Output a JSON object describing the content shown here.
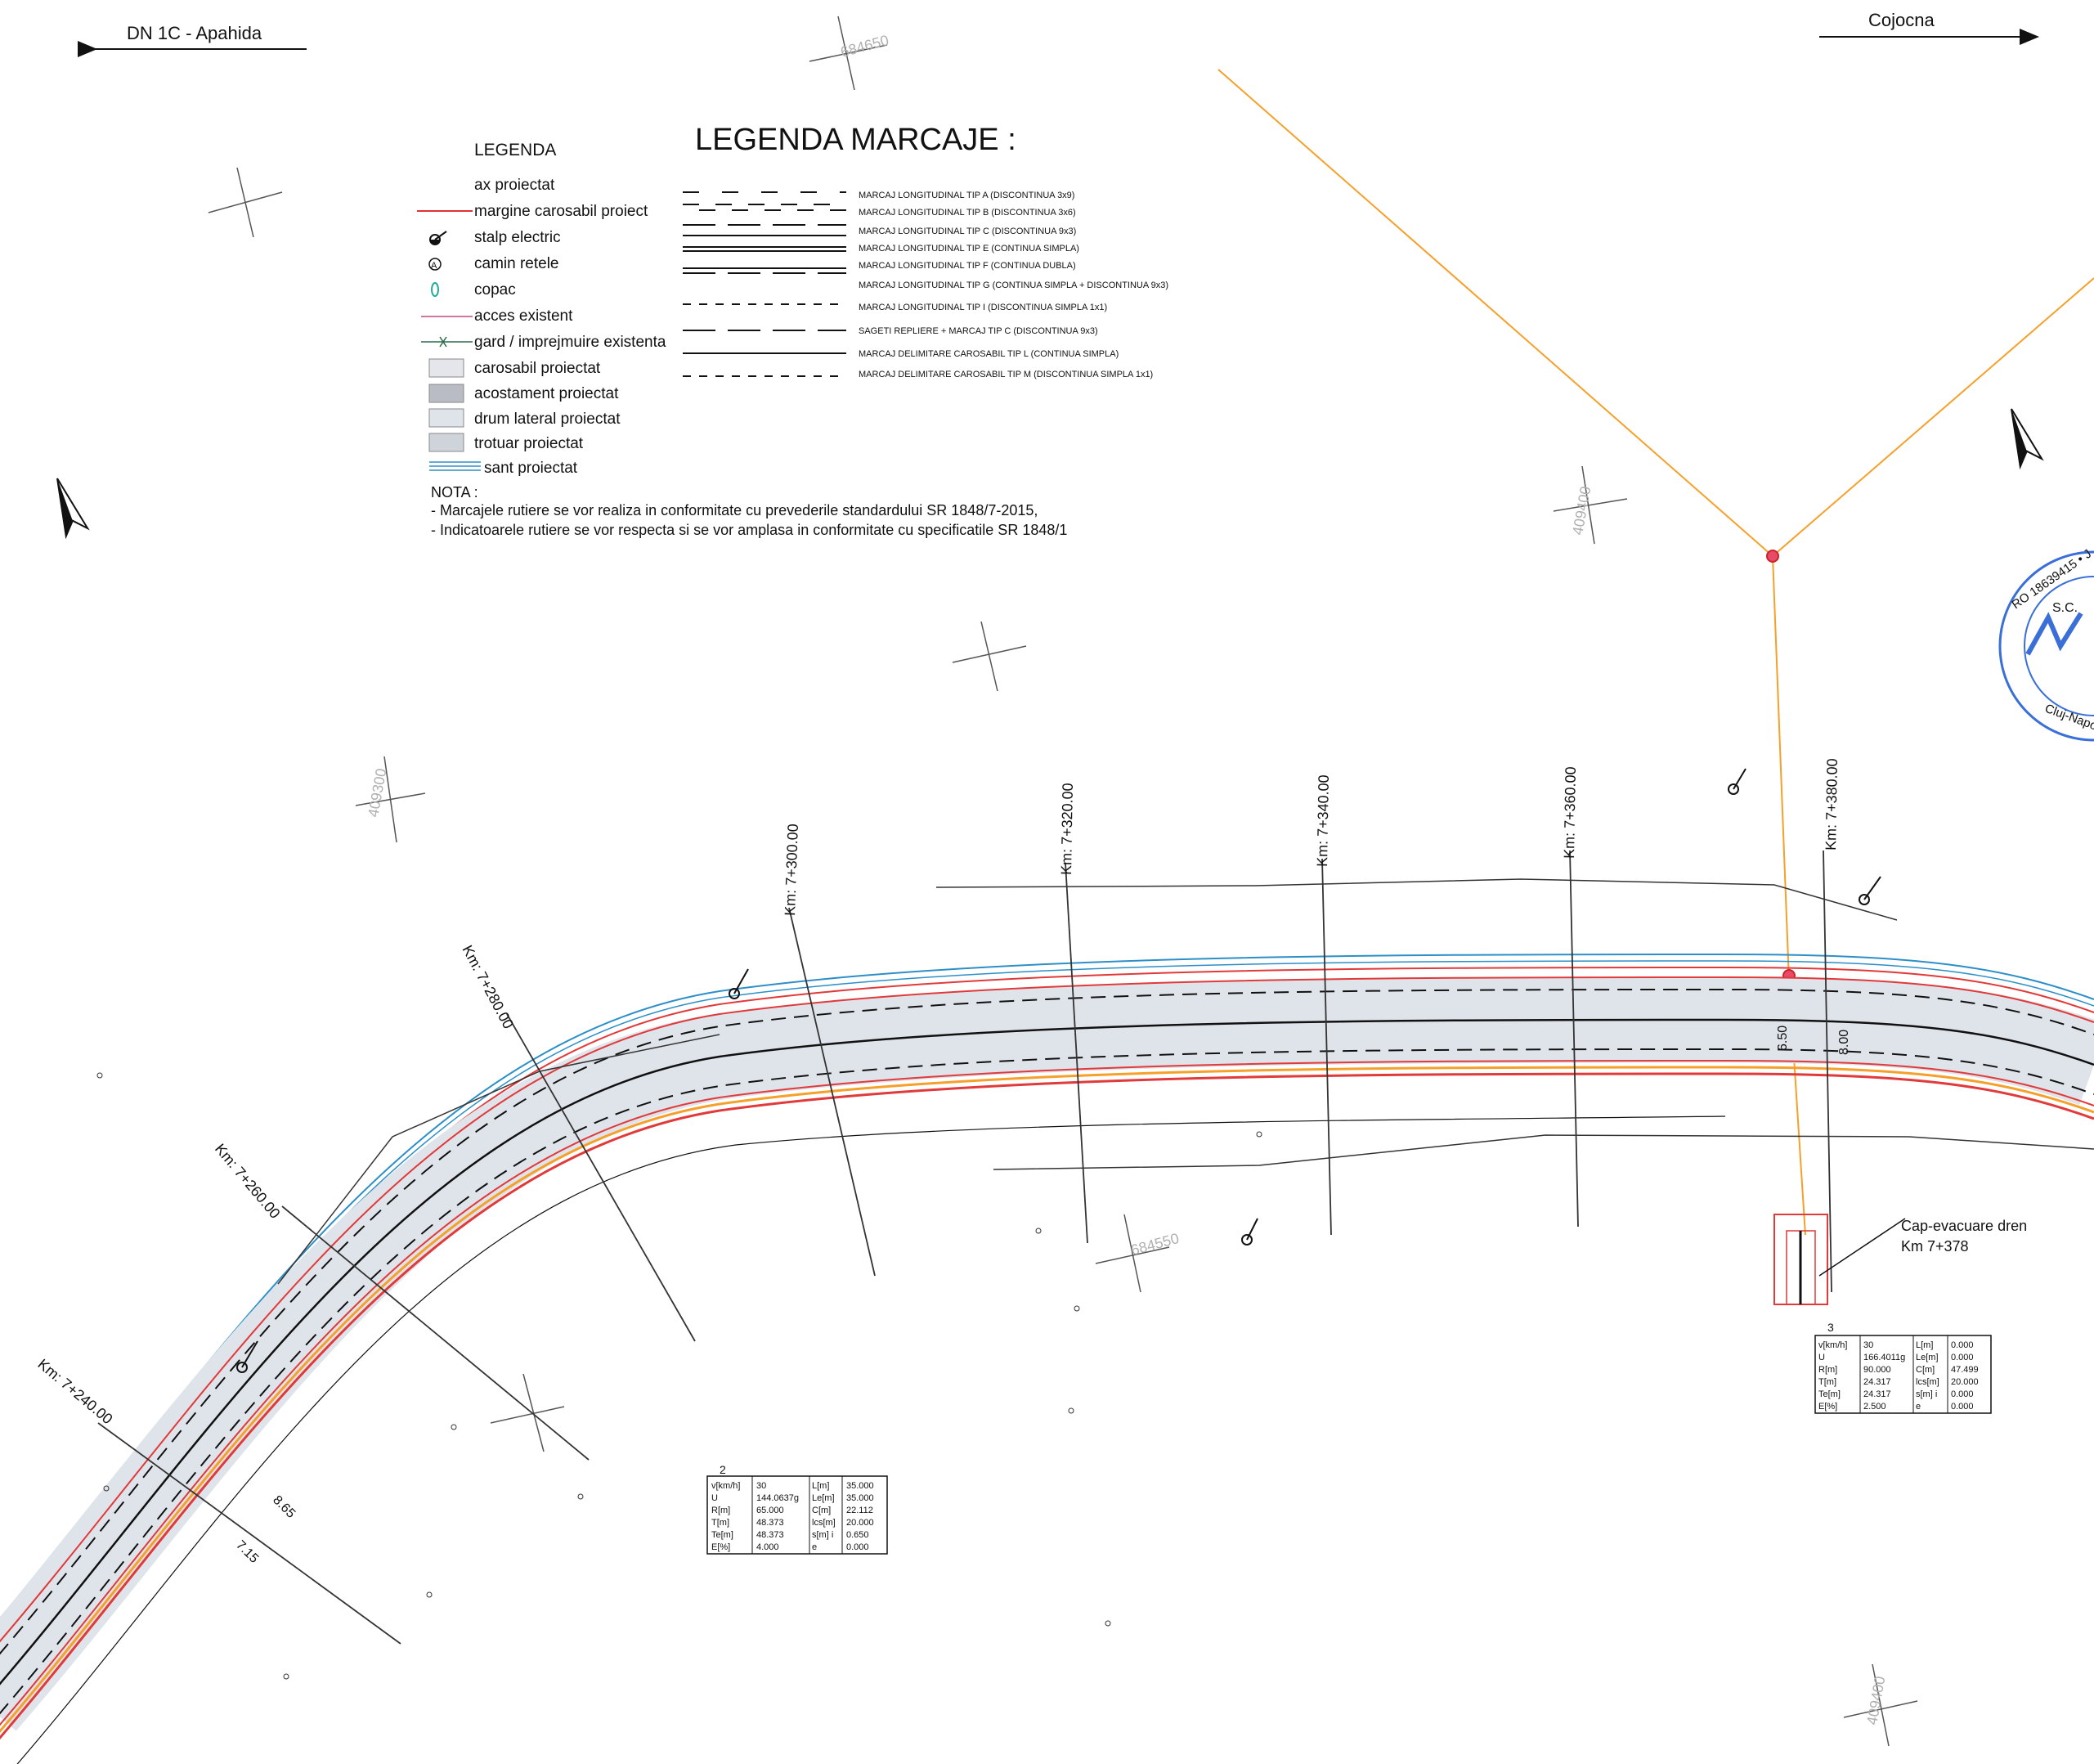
{
  "directions": {
    "left": "DN 1C - Apahida",
    "right": "Cojocna"
  },
  "grid_labels": [
    "684650",
    "409400",
    "409300",
    "684550",
    "409400"
  ],
  "legend": {
    "title": "LEGENDA",
    "items": [
      "ax proiectat",
      "margine carosabil proiect",
      "stalp electric",
      "camin retele",
      "copac",
      "acces existent",
      "gard / imprejmuire existenta",
      "carosabil proiectat",
      "acostament proiectat",
      "drum lateral proiectat",
      "trotuar proiectat",
      "sant proiectat"
    ]
  },
  "legend_marcaje": {
    "title": "LEGENDA MARCAJE :",
    "items": [
      "MARCAJ LONGITUDINAL TIP A (DISCONTINUA 3x9)",
      "MARCAJ LONGITUDINAL TIP B (DISCONTINUA 3x6)",
      "MARCAJ LONGITUDINAL TIP C (DISCONTINUA 9x3)",
      "MARCAJ LONGITUDINAL TIP E (CONTINUA SIMPLA)",
      "MARCAJ LONGITUDINAL TIP F (CONTINUA DUBLA)",
      "MARCAJ LONGITUDINAL TIP G (CONTINUA SIMPLA + DISCONTINUA 9x3)",
      "MARCAJ LONGITUDINAL TIP I (DISCONTINUA SIMPLA 1x1)",
      "SAGETI REPLIERE + MARCAJ TIP C (DISCONTINUA 9x3)",
      "MARCAJ DELIMITARE CAROSABIL TIP L (CONTINUA SIMPLA)",
      "MARCAJ DELIMITARE CAROSABIL TIP M (DISCONTINUA SIMPLA 1x1)"
    ]
  },
  "nota": {
    "title": "NOTA :",
    "lines": [
      "- Marcajele rutiere se vor realiza in conformitate cu prevederile standardului SR 1848/7-2015,",
      "- Indicatoarele rutiere se vor respecta si se vor amplasa in conformitate cu specificatile SR 1848/1"
    ]
  },
  "chainages": [
    "Km: 7+240.00",
    "Km: 7+260.00",
    "Km: 7+280.00",
    "Km: 7+300.00",
    "Km: 7+320.00",
    "Km: 7+340.00",
    "Km: 7+360.00",
    "Km: 7+380.00"
  ],
  "widths": [
    "8.65",
    "7.15",
    "6.50",
    "8.00"
  ],
  "cap_evacuare": {
    "line1": "Cap-evacuare dren",
    "line2": "Km 7+378"
  },
  "curve_tables": [
    {
      "number": "2",
      "rows": [
        [
          "v[km/h]",
          "30",
          "L[m]",
          "35.000"
        ],
        [
          "U",
          "144.0637g",
          "Le[m]",
          "35.000"
        ],
        [
          "R[m]",
          "65.000",
          "C[m]",
          "22.112"
        ],
        [
          "T[m]",
          "48.373",
          "lcs[m]",
          "20.000"
        ],
        [
          "Te[m]",
          "48.373",
          "s[m] i",
          "0.650"
        ],
        [
          "E[%]",
          "4.000",
          "e",
          "0.000"
        ]
      ]
    },
    {
      "number": "3",
      "rows": [
        [
          "v[km/h]",
          "30",
          "L[m]",
          "0.000"
        ],
        [
          "U",
          "166.4011g",
          "Le[m]",
          "0.000"
        ],
        [
          "R[m]",
          "90.000",
          "C[m]",
          "47.499"
        ],
        [
          "T[m]",
          "24.317",
          "lcs[m]",
          "20.000"
        ],
        [
          "Te[m]",
          "24.317",
          "s[m] i",
          "0.000"
        ],
        [
          "E[%]",
          "2.500",
          "e",
          "0.000"
        ]
      ]
    }
  ],
  "stamp": {
    "line1": "RO 18639415 • J",
    "line2": "S.C.",
    "line3": "Cluj-Napo"
  },
  "colors": {
    "road": "#dfe3ea",
    "edge_red": "#e03a3a",
    "orange": "#f5a02a",
    "blue": "#2d8fc7"
  }
}
